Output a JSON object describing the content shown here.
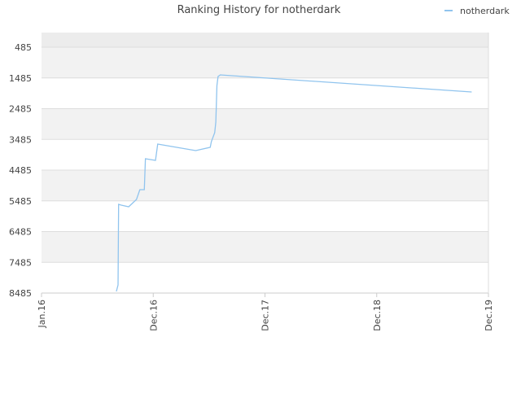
{
  "chart_data": {
    "type": "line",
    "title": "Ranking History for notherdark",
    "x": [
      2016.67,
      2016.685,
      2016.69,
      2016.714,
      2016.78,
      2016.85,
      2016.88,
      2016.92,
      2016.93,
      2017.02,
      2017.04,
      2017.38,
      2017.51,
      2017.52,
      2017.55,
      2017.56,
      2017.57,
      2017.58,
      2017.6,
      2019.85
    ],
    "series": [
      {
        "name": "notherdark",
        "color": "#90c4ee",
        "values": [
          8432,
          8220,
          5598,
          5624,
          5677,
          5439,
          5121,
          5121,
          4114,
          4167,
          3637,
          3849,
          3743,
          3558,
          3266,
          2922,
          1730,
          1439,
          1386,
          1942
        ]
      }
    ],
    "xlim": [
      2016,
      2020
    ],
    "xticks": [
      {
        "value": 2016,
        "label": "Jan.16"
      },
      {
        "value": 2017,
        "label": "Dec.16"
      },
      {
        "value": 2018,
        "label": "Dec.17"
      },
      {
        "value": 2019,
        "label": "Dec.18"
      },
      {
        "value": 2020,
        "label": "Dec.19"
      }
    ],
    "ylim": [
      8485,
      8
    ],
    "yticks": [
      485,
      1485,
      2485,
      3485,
      4485,
      5485,
      6485,
      7485,
      8485
    ],
    "grid": true,
    "legend": "top-right"
  }
}
